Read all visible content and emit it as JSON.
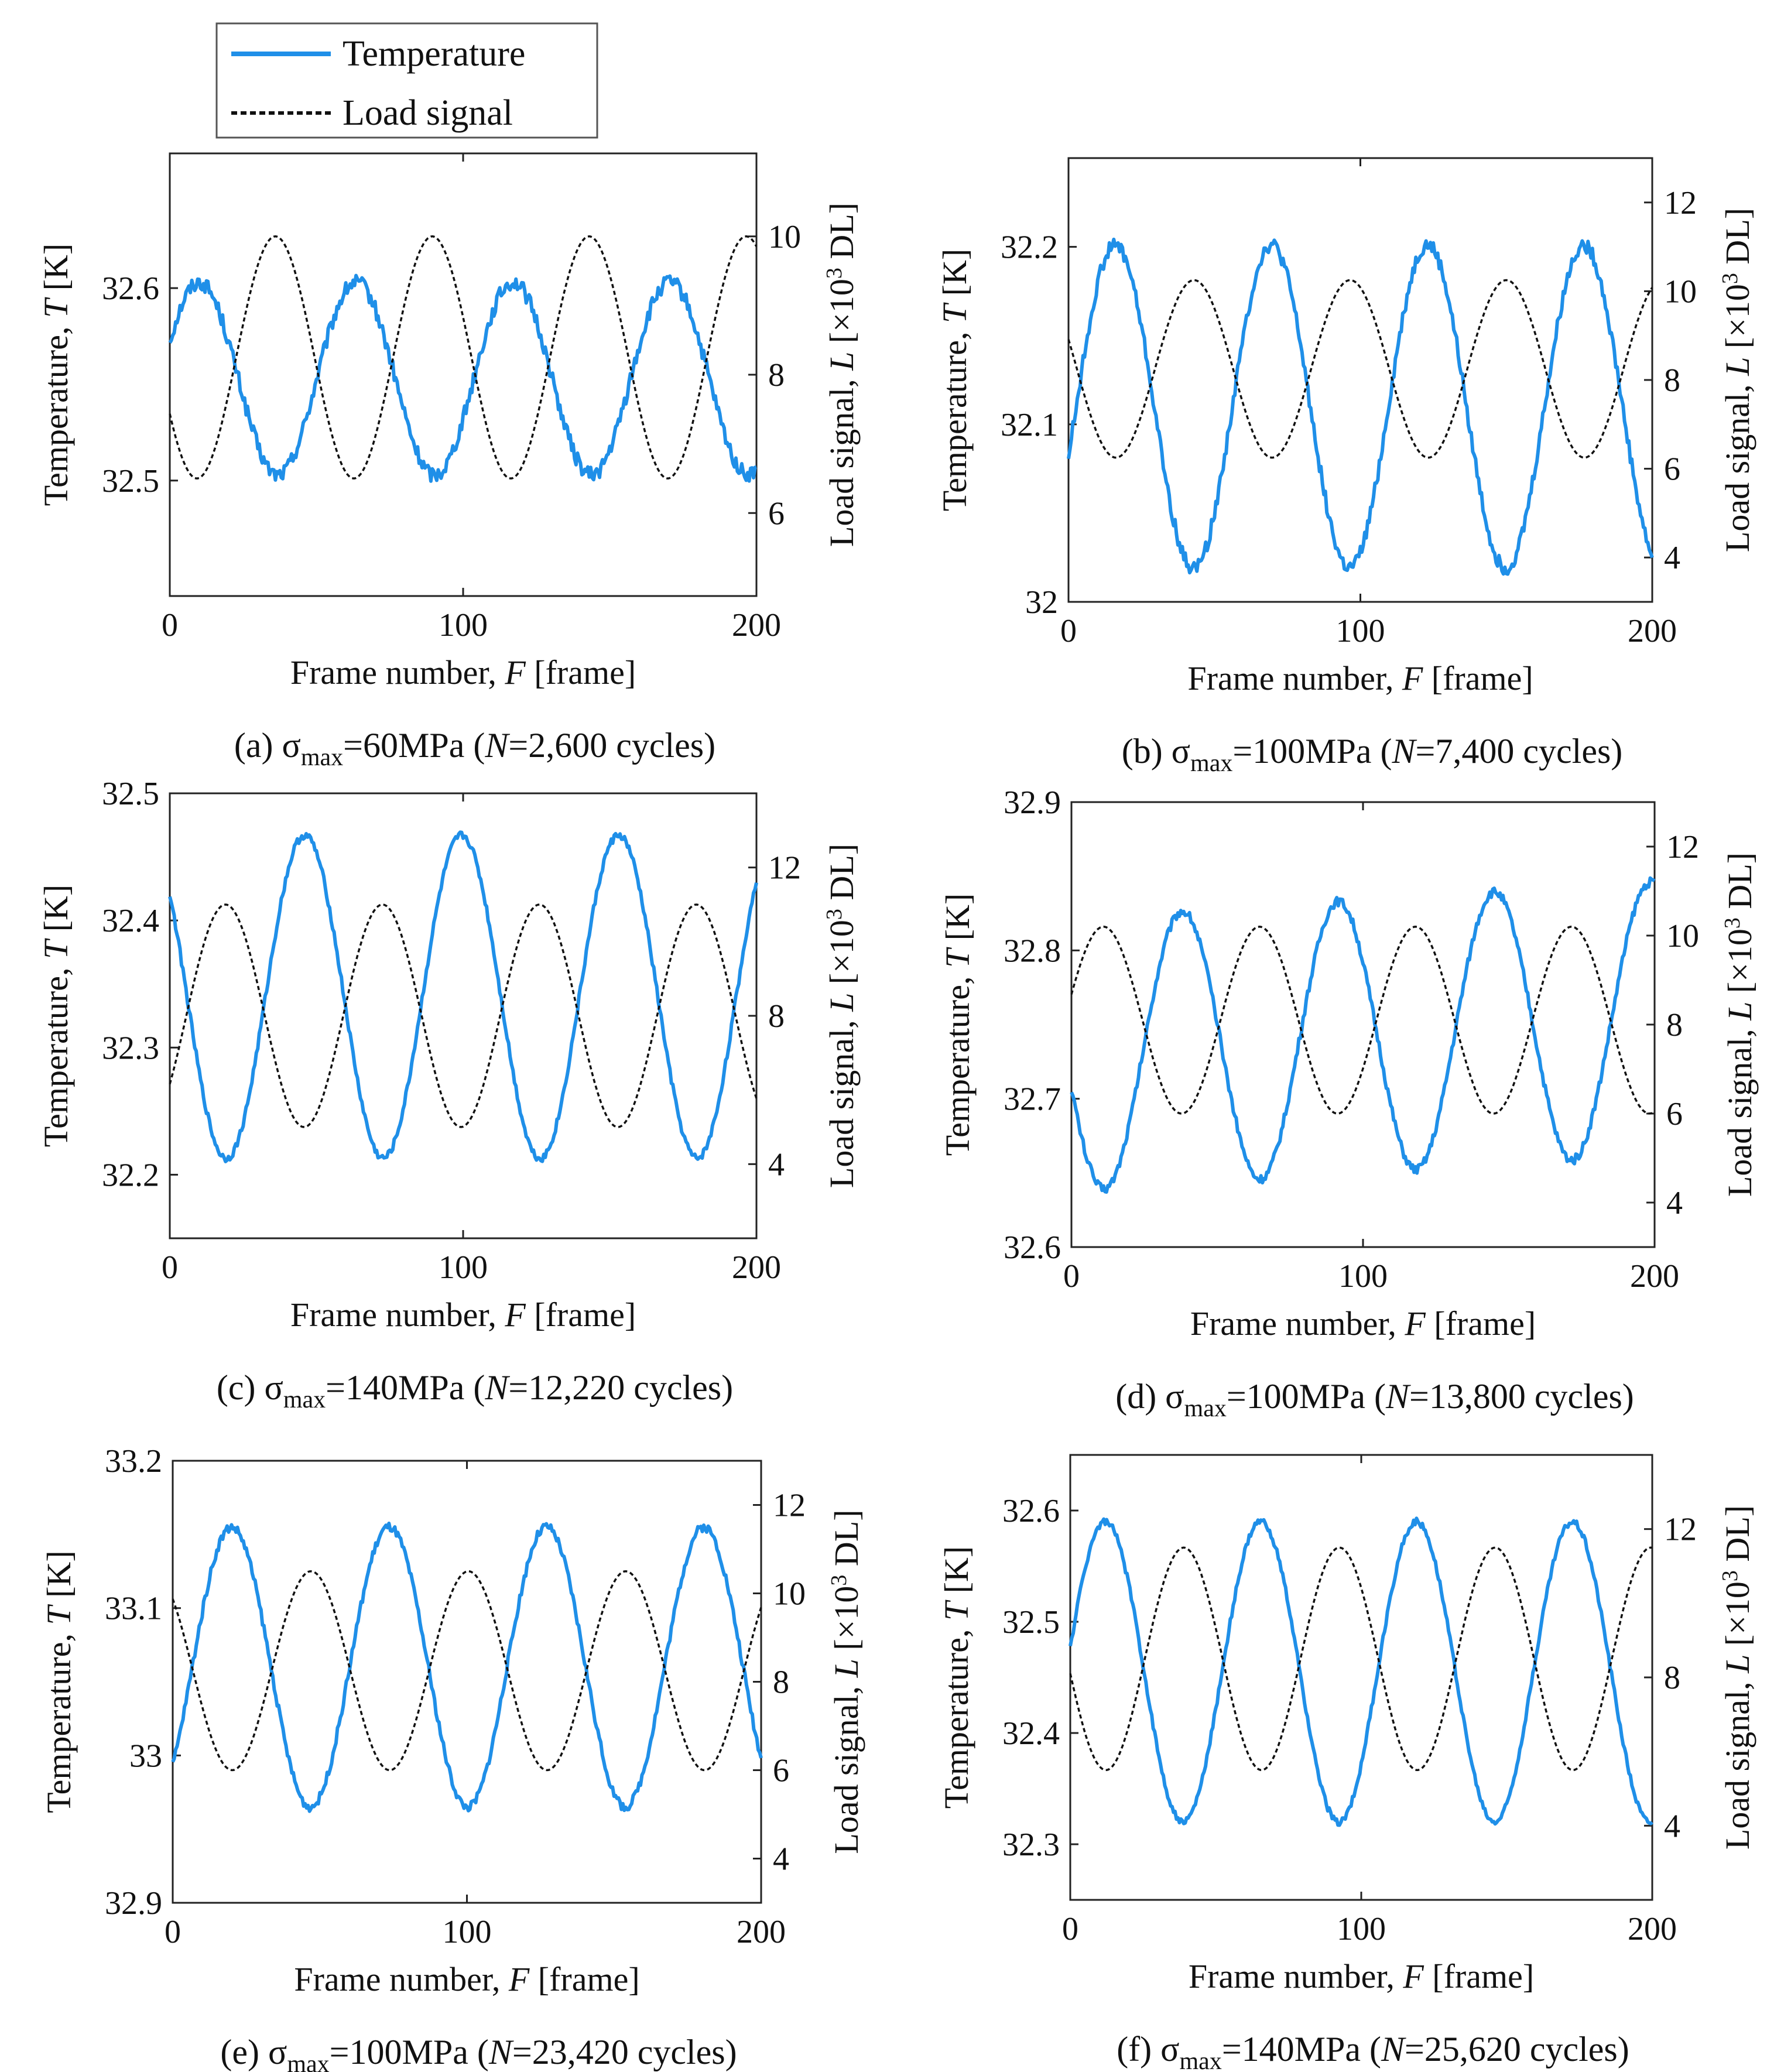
{
  "legend": {
    "temperature_label": "Temperature",
    "load_label": "Load signal"
  },
  "colors": {
    "temperature": "#1f8fe8",
    "load": "#111111"
  },
  "chart_data": [
    {
      "type": "line",
      "id": "a",
      "caption_pre": "(a) σ",
      "caption_sub": "max",
      "caption_mid": "=60MPa (",
      "caption_n": "N",
      "caption_post": "=2,600 cycles)",
      "xlabel_pre": "Frame number, ",
      "xlabel_var": "F",
      "xlabel_post": " [frame]",
      "ylabel_pre": "Temperature, ",
      "ylabel_var": "T",
      "ylabel_post": " [K]",
      "y2label_pre": "Load signal, ",
      "y2label_var": "L",
      "y2label_post": " [×10",
      "y2label_exp": "3",
      "y2label_end": " DL]",
      "xlim": [
        0,
        200
      ],
      "xticks": [
        0,
        100,
        200
      ],
      "xtick_labels": [
        "0",
        "100",
        "200"
      ],
      "ylim": [
        32.44,
        32.67
      ],
      "yticks": [
        32.5,
        32.6
      ],
      "ytick_labels": [
        "32.5",
        "32.6"
      ],
      "y2lim": [
        4.8,
        11.2
      ],
      "y2ticks": [
        6,
        8,
        10
      ],
      "y2tick_labels": [
        "6",
        "8",
        "10"
      ],
      "series": [
        {
          "name": "Temperature",
          "axis": "left",
          "mean": 32.553,
          "amp": 0.05,
          "period": 53.5,
          "peak_frame": 10,
          "noise": 0.004
        },
        {
          "name": "Load signal",
          "axis": "right",
          "mean": 8.25,
          "amp": 1.75,
          "period": 53.5,
          "peak_frame": 36,
          "noise": 0
        }
      ]
    },
    {
      "type": "line",
      "id": "b",
      "caption_pre": "(b) σ",
      "caption_sub": "max",
      "caption_mid": "=100MPa (",
      "caption_n": "N",
      "caption_post": "=7,400 cycles)",
      "xlabel_pre": "Frame number, ",
      "xlabel_var": "F",
      "xlabel_post": " [frame]",
      "ylabel_pre": "Temperature, ",
      "ylabel_var": "T",
      "ylabel_post": " [K]",
      "y2label_pre": "Load signal, ",
      "y2label_var": "L",
      "y2label_post": " [×10",
      "y2label_exp": "3",
      "y2label_end": " DL]",
      "xlim": [
        0,
        200
      ],
      "xticks": [
        0,
        100,
        200
      ],
      "xtick_labels": [
        "0",
        "100",
        "200"
      ],
      "ylim": [
        32.0,
        32.25
      ],
      "yticks": [
        32.0,
        32.1,
        32.2
      ],
      "ytick_labels": [
        "32",
        "32.1",
        "32.2"
      ],
      "y2lim": [
        3.0,
        13.0
      ],
      "y2ticks": [
        4,
        6,
        8,
        10,
        12
      ],
      "y2tick_labels": [
        "4",
        "6",
        "8",
        "10",
        "12"
      ],
      "series": [
        {
          "name": "Temperature",
          "axis": "left",
          "mean": 32.11,
          "amp": 0.091,
          "period": 53.5,
          "peak_frame": 16,
          "noise": 0.004
        },
        {
          "name": "Load signal",
          "axis": "right",
          "mean": 8.25,
          "amp": 2.0,
          "period": 53.5,
          "peak_frame": 43,
          "noise": 0
        }
      ]
    },
    {
      "type": "line",
      "id": "c",
      "caption_pre": "(c) σ",
      "caption_sub": "max",
      "caption_mid": "=140MPa (",
      "caption_n": "N",
      "caption_post": "=12,220 cycles)",
      "xlabel_pre": "Frame number, ",
      "xlabel_var": "F",
      "xlabel_post": " [frame]",
      "ylabel_pre": "Temperature, ",
      "ylabel_var": "T",
      "ylabel_post": " [K]",
      "y2label_pre": "Load signal, ",
      "y2label_var": "L",
      "y2label_post": " [×10",
      "y2label_exp": "3",
      "y2label_end": " DL]",
      "xlim": [
        0,
        200
      ],
      "xticks": [
        0,
        100,
        200
      ],
      "xtick_labels": [
        "0",
        "100",
        "200"
      ],
      "ylim": [
        32.15,
        32.5
      ],
      "yticks": [
        32.2,
        32.3,
        32.4,
        32.5
      ],
      "ytick_labels": [
        "32.2",
        "32.3",
        "32.4",
        "32.5"
      ],
      "y2lim": [
        2.0,
        14.0
      ],
      "y2ticks": [
        4,
        8,
        12
      ],
      "y2tick_labels": [
        "4",
        "8",
        "12"
      ],
      "series": [
        {
          "name": "Temperature",
          "axis": "left",
          "mean": 32.34,
          "amp": 0.127,
          "period": 53.5,
          "peak_frame": 46,
          "noise": 0.003
        },
        {
          "name": "Load signal",
          "axis": "right",
          "mean": 8.0,
          "amp": 3.0,
          "period": 53.5,
          "peak_frame": 19,
          "noise": 0
        }
      ]
    },
    {
      "type": "line",
      "id": "d",
      "caption_pre": "(d) σ",
      "caption_sub": "max",
      "caption_mid": "=100MPa (",
      "caption_n": "N",
      "caption_post": "=13,800 cycles)",
      "xlabel_pre": "Frame number, ",
      "xlabel_var": "F",
      "xlabel_post": " [frame]",
      "ylabel_pre": "Temperature, ",
      "ylabel_var": "T",
      "ylabel_post": " [K]",
      "y2label_pre": "Load signal, ",
      "y2label_var": "L",
      "y2label_post": " [×10",
      "y2label_exp": "3",
      "y2label_end": " DL]",
      "xlim": [
        0,
        200
      ],
      "xticks": [
        0,
        100,
        200
      ],
      "xtick_labels": [
        "0",
        "100",
        "200"
      ],
      "ylim": [
        32.6,
        32.9
      ],
      "yticks": [
        32.6,
        32.7,
        32.8,
        32.9
      ],
      "ytick_labels": [
        "32.6",
        "32.7",
        "32.8",
        "32.9"
      ],
      "y2lim": [
        3.0,
        13.0
      ],
      "y2ticks": [
        4,
        6,
        8,
        10,
        12
      ],
      "y2tick_labels": [
        "4",
        "6",
        "8",
        "10",
        "12"
      ],
      "series": [
        {
          "name": "Temperature",
          "axis": "left",
          "mean": 32.742,
          "amp": 0.092,
          "period": 53.5,
          "peak_frame": 38,
          "noise": 0.003,
          "trend": 0.00012
        },
        {
          "name": "Load signal",
          "axis": "right",
          "mean": 8.1,
          "amp": 2.1,
          "period": 53.5,
          "peak_frame": 11,
          "noise": 0
        }
      ]
    },
    {
      "type": "line",
      "id": "e",
      "caption_pre": "(e) σ",
      "caption_sub": "max",
      "caption_mid": "=100MPa (",
      "caption_n": "N",
      "caption_post": "=23,420 cycles)",
      "xlabel_pre": "Frame number, ",
      "xlabel_var": "F",
      "xlabel_post": " [frame]",
      "ylabel_pre": "Temperature, ",
      "ylabel_var": "T",
      "ylabel_post": " [K]",
      "y2label_pre": "Load signal, ",
      "y2label_var": "L",
      "y2label_post": " [×10",
      "y2label_exp": "3",
      "y2label_end": " DL]",
      "xlim": [
        0,
        200
      ],
      "xticks": [
        0,
        100,
        200
      ],
      "xtick_labels": [
        "0",
        "100",
        "200"
      ],
      "ylim": [
        32.9,
        33.2
      ],
      "yticks": [
        32.9,
        33.0,
        33.1,
        33.2
      ],
      "ytick_labels": [
        "32.9",
        "33",
        "33.1",
        "33.2"
      ],
      "y2lim": [
        3.0,
        13.0
      ],
      "y2ticks": [
        4,
        6,
        8,
        10,
        12
      ],
      "y2tick_labels": [
        "4",
        "6",
        "8",
        "10",
        "12"
      ],
      "series": [
        {
          "name": "Temperature",
          "axis": "left",
          "mean": 33.06,
          "amp": 0.095,
          "period": 53.5,
          "peak_frame": 20,
          "noise": 0.003
        },
        {
          "name": "Load signal",
          "axis": "right",
          "mean": 8.25,
          "amp": 2.25,
          "period": 53.5,
          "peak_frame": 47,
          "noise": 0
        }
      ]
    },
    {
      "type": "line",
      "id": "f",
      "caption_pre": "(f) σ",
      "caption_sub": "max",
      "caption_mid": "=140MPa (",
      "caption_n": "N",
      "caption_post": "=25,620 cycles)",
      "xlabel_pre": "Frame number, ",
      "xlabel_var": "F",
      "xlabel_post": " [frame]",
      "ylabel_pre": "Temperature, ",
      "ylabel_var": "T",
      "ylabel_post": " [K]",
      "y2label_pre": "Load signal, ",
      "y2label_var": "L",
      "y2label_post": " [×10",
      "y2label_exp": "3",
      "y2label_end": " DL]",
      "xlim": [
        0,
        200
      ],
      "xticks": [
        0,
        100,
        200
      ],
      "xtick_labels": [
        "0",
        "100",
        "200"
      ],
      "ylim": [
        32.25,
        32.65
      ],
      "yticks": [
        32.3,
        32.4,
        32.5,
        32.6
      ],
      "ytick_labels": [
        "32.3",
        "32.4",
        "32.5",
        "32.6"
      ],
      "y2lim": [
        2.0,
        14.0
      ],
      "y2ticks": [
        4,
        8,
        12
      ],
      "y2tick_labels": [
        "4",
        "8",
        "12"
      ],
      "series": [
        {
          "name": "Temperature",
          "axis": "left",
          "mean": 32.455,
          "amp": 0.135,
          "period": 53.5,
          "peak_frame": 12,
          "noise": 0.003
        },
        {
          "name": "Load signal",
          "axis": "right",
          "mean": 8.5,
          "amp": 3.0,
          "period": 53.5,
          "peak_frame": 39,
          "noise": 0
        }
      ]
    }
  ]
}
